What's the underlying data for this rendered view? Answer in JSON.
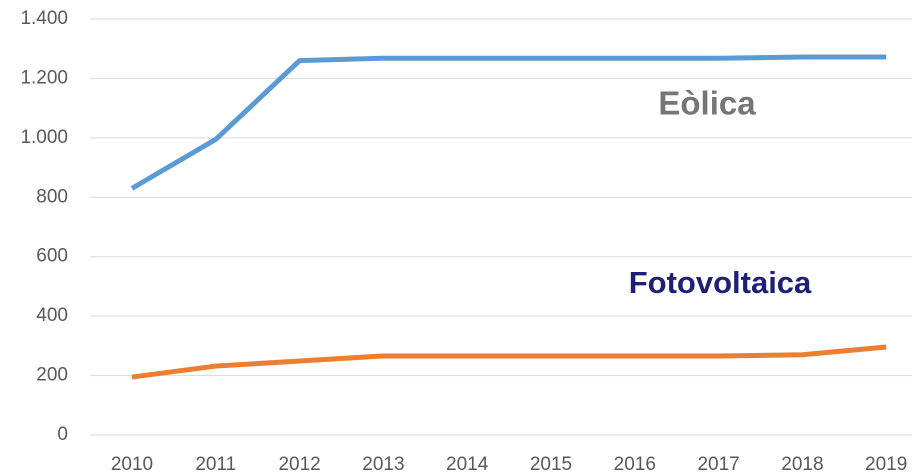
{
  "chart_data": {
    "type": "line",
    "categories": [
      "2010",
      "2011",
      "2012",
      "2013",
      "2014",
      "2015",
      "2016",
      "2017",
      "2018",
      "2019"
    ],
    "series": [
      {
        "name": "Eòlica",
        "color": "#5b9bd5",
        "label_color": "#767676",
        "values": [
          830,
          995,
          1260,
          1268,
          1268,
          1268,
          1268,
          1268,
          1272,
          1272
        ]
      },
      {
        "name": "Fotovoltaica",
        "color": "#ed7d31",
        "label_color": "#1f1f78",
        "values": [
          195,
          232,
          249,
          266,
          266,
          266,
          266,
          266,
          270,
          296
        ]
      }
    ],
    "ylim": [
      0,
      1400
    ],
    "yticks": [
      0,
      200,
      400,
      600,
      800,
      {
        "value": 1000,
        "label": "1.000"
      },
      {
        "value": 1200,
        "label": "1.200"
      },
      {
        "value": 1400,
        "label": "1.400"
      }
    ],
    "grid": true
  }
}
